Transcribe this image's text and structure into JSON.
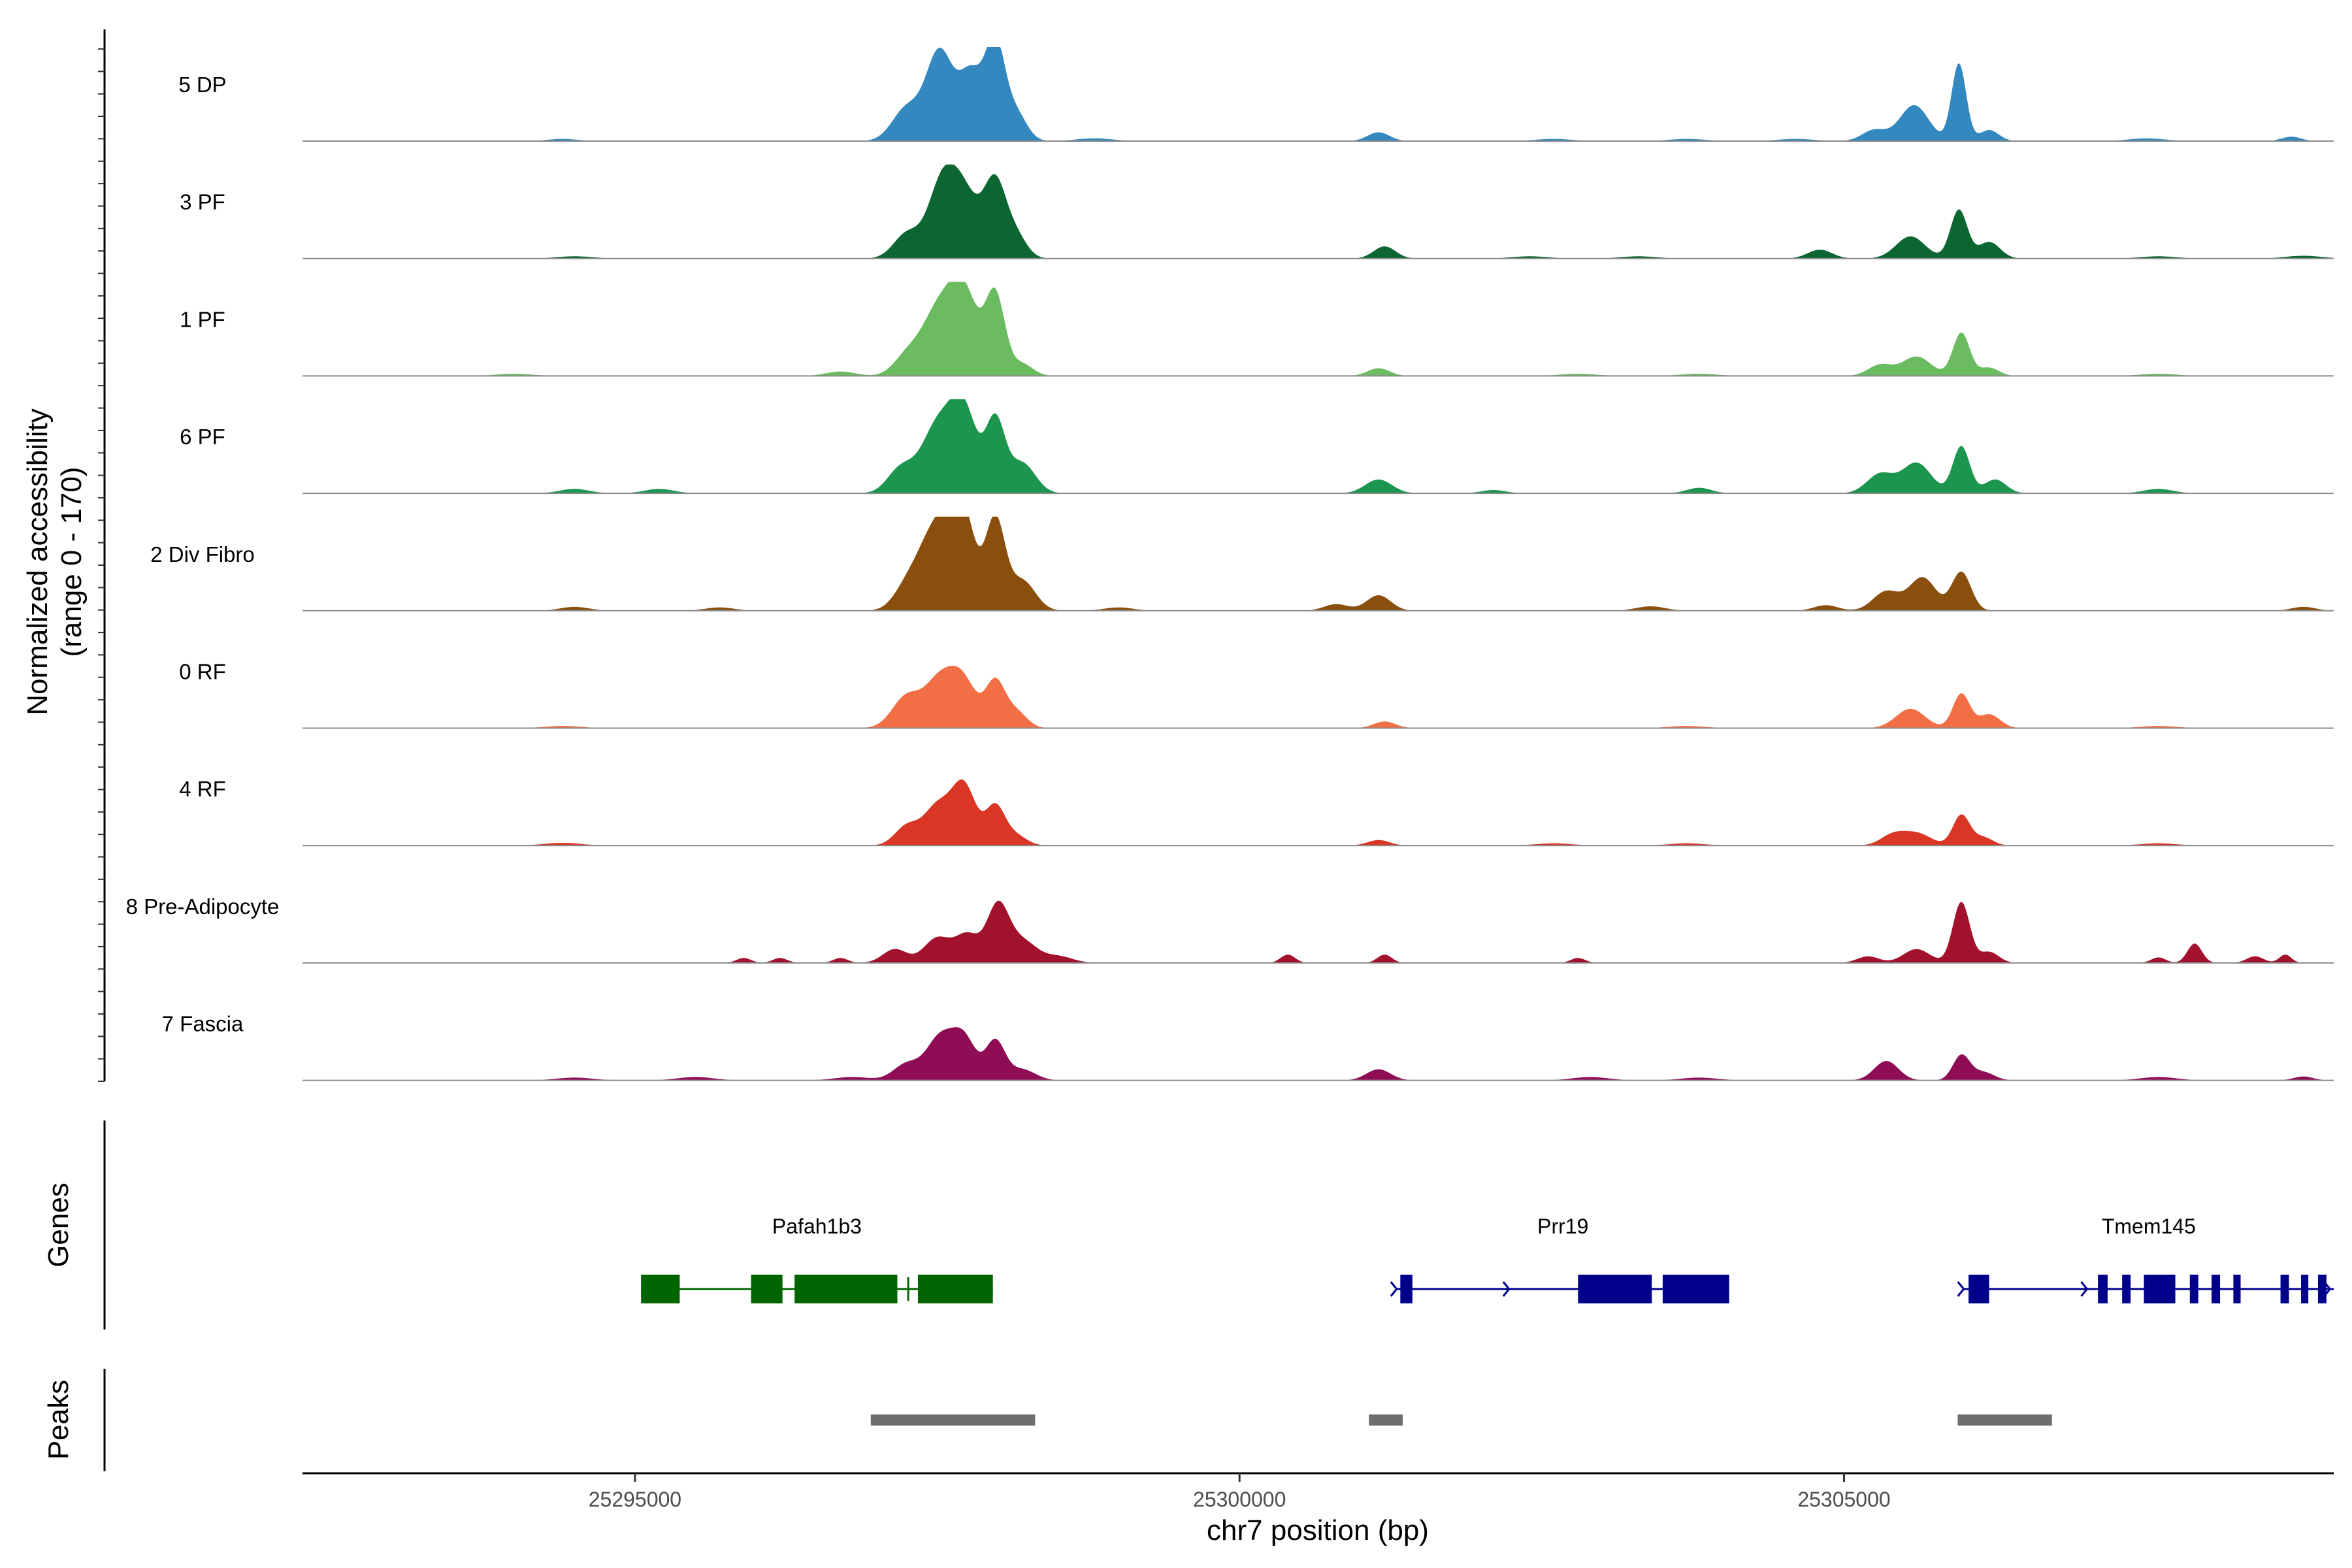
{
  "chart_data": {
    "type": "area",
    "title": "",
    "chromosome": "chr7",
    "xlabel": "chr7 position (bp)",
    "ylabel": "Normalized accessibility",
    "ylabel_range": "(range 0 - 170)",
    "ylim": [
      0,
      170
    ],
    "xlim": [
      25292250,
      25309050
    ],
    "x_ticks": [
      25295000,
      25300000,
      25305000
    ],
    "x_tick_labels": [
      "25295000",
      "25300000",
      "25305000"
    ],
    "panel_labels": {
      "genes": "Genes",
      "peaks": "Peaks"
    },
    "series": [
      {
        "name": "5 DP",
        "color": "#3488c0",
        "peaks": [
          [
            25297250,
            60,
            120
          ],
          [
            25297520,
            160,
            110
          ],
          [
            25297780,
            120,
            100
          ],
          [
            25297980,
            170,
            80
          ],
          [
            25298150,
            50,
            90
          ],
          [
            25301150,
            16,
            90
          ],
          [
            25305250,
            20,
            100
          ],
          [
            25305580,
            65,
            120
          ],
          [
            25305950,
            140,
            60
          ],
          [
            25306200,
            20,
            80
          ],
          [
            25294400,
            4,
            120
          ],
          [
            25298800,
            5,
            150
          ],
          [
            25302600,
            4,
            150
          ],
          [
            25303700,
            4,
            150
          ],
          [
            25304600,
            4,
            150
          ],
          [
            25307500,
            5,
            150
          ],
          [
            25308700,
            8,
            80
          ]
        ]
      },
      {
        "name": "3 PF",
        "color": "#0b6631",
        "peaks": [
          [
            25297250,
            45,
            110
          ],
          [
            25297520,
            95,
            110
          ],
          [
            25297700,
            128,
            140
          ],
          [
            25297980,
            128,
            90
          ],
          [
            25298150,
            40,
            90
          ],
          [
            25301200,
            22,
            90
          ],
          [
            25304800,
            16,
            100
          ],
          [
            25305550,
            40,
            120
          ],
          [
            25305950,
            88,
            70
          ],
          [
            25306200,
            30,
            90
          ],
          [
            25294500,
            4,
            150
          ],
          [
            25302400,
            4,
            150
          ],
          [
            25303300,
            4,
            150
          ],
          [
            25307600,
            4,
            150
          ],
          [
            25308800,
            5,
            150
          ]
        ]
      },
      {
        "name": "1 PF",
        "color": "#6bbc61",
        "peaks": [
          [
            25296700,
            8,
            120
          ],
          [
            25297250,
            35,
            110
          ],
          [
            25297500,
            110,
            130
          ],
          [
            25297720,
            148,
            120
          ],
          [
            25297980,
            143,
            80
          ],
          [
            25298200,
            22,
            90
          ],
          [
            25301150,
            14,
            90
          ],
          [
            25305300,
            20,
            100
          ],
          [
            25305600,
            35,
            120
          ],
          [
            25305970,
            78,
            70
          ],
          [
            25306200,
            15,
            80
          ],
          [
            25294000,
            4,
            150
          ],
          [
            25302800,
            4,
            150
          ],
          [
            25303800,
            4,
            150
          ],
          [
            25307600,
            4,
            150
          ]
        ]
      },
      {
        "name": "6 PF",
        "color": "#1c964f",
        "peaks": [
          [
            25297200,
            45,
            110
          ],
          [
            25297500,
            120,
            130
          ],
          [
            25297720,
            145,
            110
          ],
          [
            25297980,
            128,
            80
          ],
          [
            25298200,
            55,
            110
          ],
          [
            25301150,
            25,
            110
          ],
          [
            25305300,
            35,
            110
          ],
          [
            25305600,
            55,
            120
          ],
          [
            25305970,
            85,
            70
          ],
          [
            25306250,
            25,
            90
          ],
          [
            25294500,
            8,
            120
          ],
          [
            25295200,
            8,
            120
          ],
          [
            25303800,
            10,
            100
          ],
          [
            25307600,
            8,
            120
          ],
          [
            25302100,
            6,
            100
          ]
        ]
      },
      {
        "name": "2 Div Fibro",
        "color": "#8b4f0d",
        "peaks": [
          [
            25297250,
            40,
            110
          ],
          [
            25297480,
            140,
            130
          ],
          [
            25297700,
            180,
            110
          ],
          [
            25297980,
            160,
            80
          ],
          [
            25298200,
            55,
            110
          ],
          [
            25301150,
            28,
            100
          ],
          [
            25300800,
            12,
            100
          ],
          [
            25304850,
            10,
            100
          ],
          [
            25305350,
            35,
            110
          ],
          [
            25305650,
            60,
            110
          ],
          [
            25305970,
            70,
            80
          ],
          [
            25294500,
            7,
            120
          ],
          [
            25295700,
            6,
            120
          ],
          [
            25299000,
            6,
            120
          ],
          [
            25303400,
            8,
            120
          ],
          [
            25308800,
            7,
            100
          ]
        ]
      },
      {
        "name": "0 RF",
        "color": "#f26f46",
        "peaks": [
          [
            25297250,
            58,
            120
          ],
          [
            25297500,
            70,
            110
          ],
          [
            25297700,
            92,
            120
          ],
          [
            25297980,
            80,
            80
          ],
          [
            25298150,
            30,
            90
          ],
          [
            25301200,
            12,
            90
          ],
          [
            25305550,
            35,
            120
          ],
          [
            25305970,
            62,
            70
          ],
          [
            25306200,
            25,
            90
          ],
          [
            25294400,
            4,
            150
          ],
          [
            25303700,
            4,
            150
          ],
          [
            25307600,
            4,
            150
          ]
        ]
      },
      {
        "name": "4 RF",
        "color": "#d93625",
        "peaks": [
          [
            25297250,
            35,
            100
          ],
          [
            25297500,
            70,
            110
          ],
          [
            25297720,
            108,
            100
          ],
          [
            25297980,
            70,
            80
          ],
          [
            25298150,
            18,
            90
          ],
          [
            25301150,
            10,
            90
          ],
          [
            25305400,
            18,
            100
          ],
          [
            25305600,
            22,
            120
          ],
          [
            25305970,
            55,
            70
          ],
          [
            25306150,
            15,
            80
          ],
          [
            25294400,
            5,
            150
          ],
          [
            25302600,
            4,
            150
          ],
          [
            25303700,
            4,
            150
          ],
          [
            25307600,
            4,
            150
          ]
        ]
      },
      {
        "name": "8 Pre-Adipocyte",
        "color": "#a3122c",
        "peaks": [
          [
            25297150,
            25,
            100
          ],
          [
            25297500,
            45,
            110
          ],
          [
            25297750,
            50,
            100
          ],
          [
            25298000,
            100,
            90
          ],
          [
            25298200,
            40,
            120
          ],
          [
            25298500,
            12,
            120
          ],
          [
            25300400,
            15,
            60
          ],
          [
            25301200,
            15,
            60
          ],
          [
            25305200,
            12,
            90
          ],
          [
            25305600,
            25,
            110
          ],
          [
            25305970,
            110,
            70
          ],
          [
            25306200,
            20,
            80
          ],
          [
            25307900,
            35,
            60
          ],
          [
            25308400,
            12,
            70
          ],
          [
            25295900,
            9,
            60
          ],
          [
            25296200,
            9,
            60
          ],
          [
            25296700,
            9,
            60
          ],
          [
            25302800,
            9,
            60
          ],
          [
            25307600,
            10,
            60
          ],
          [
            25308650,
            15,
            50
          ]
        ]
      },
      {
        "name": "7 Fascia",
        "color": "#8e0d55",
        "peaks": [
          [
            25297250,
            30,
            110
          ],
          [
            25297520,
            75,
            110
          ],
          [
            25297720,
            75,
            100
          ],
          [
            25297980,
            70,
            80
          ],
          [
            25298200,
            20,
            110
          ],
          [
            25301150,
            20,
            100
          ],
          [
            25305350,
            35,
            100
          ],
          [
            25305970,
            45,
            70
          ],
          [
            25306150,
            15,
            90
          ],
          [
            25294500,
            5,
            150
          ],
          [
            25295500,
            6,
            150
          ],
          [
            25296800,
            6,
            150
          ],
          [
            25302900,
            6,
            150
          ],
          [
            25303800,
            5,
            150
          ],
          [
            25307600,
            6,
            150
          ],
          [
            25308800,
            7,
            80
          ]
        ]
      }
    ],
    "genes": [
      {
        "name": "Pafah1b3",
        "strand": "-",
        "color": "#006400",
        "start": 25295050,
        "end": 25297960,
        "exons": [
          [
            25295050,
            25295370
          ],
          [
            25295960,
            25296220
          ],
          [
            25296320,
            25297170
          ],
          [
            25297340,
            25297960
          ]
        ],
        "intron_ticks": [
          25297260
        ]
      },
      {
        "name": "Prr19",
        "strand": "+",
        "color": "#00008b",
        "start": 25301300,
        "end": 25304050,
        "exons": [
          [
            25301330,
            25301430
          ],
          [
            25302800,
            25303410
          ],
          [
            25303500,
            25304050
          ]
        ],
        "arrows": [
          25301300,
          25302230
        ]
      },
      {
        "name": "Tmem145",
        "strand": "+",
        "color": "#00008b",
        "start": 25305990,
        "end": 25309050,
        "exons": [
          [
            25306030,
            25306200
          ],
          [
            25307100,
            25307180
          ],
          [
            25307300,
            25307370
          ],
          [
            25307480,
            25307740
          ],
          [
            25307860,
            25307930
          ],
          [
            25308040,
            25308110
          ],
          [
            25308220,
            25308280
          ],
          [
            25308610,
            25308680
          ],
          [
            25308780,
            25308840
          ],
          [
            25308920,
            25308990
          ]
        ],
        "arrows": [
          25305990,
          25307010,
          25308110,
          25309020
        ]
      }
    ],
    "peak_regions": [
      [
        25296950,
        25298310
      ],
      [
        25301070,
        25301350
      ],
      [
        25305940,
        25306720
      ]
    ]
  }
}
